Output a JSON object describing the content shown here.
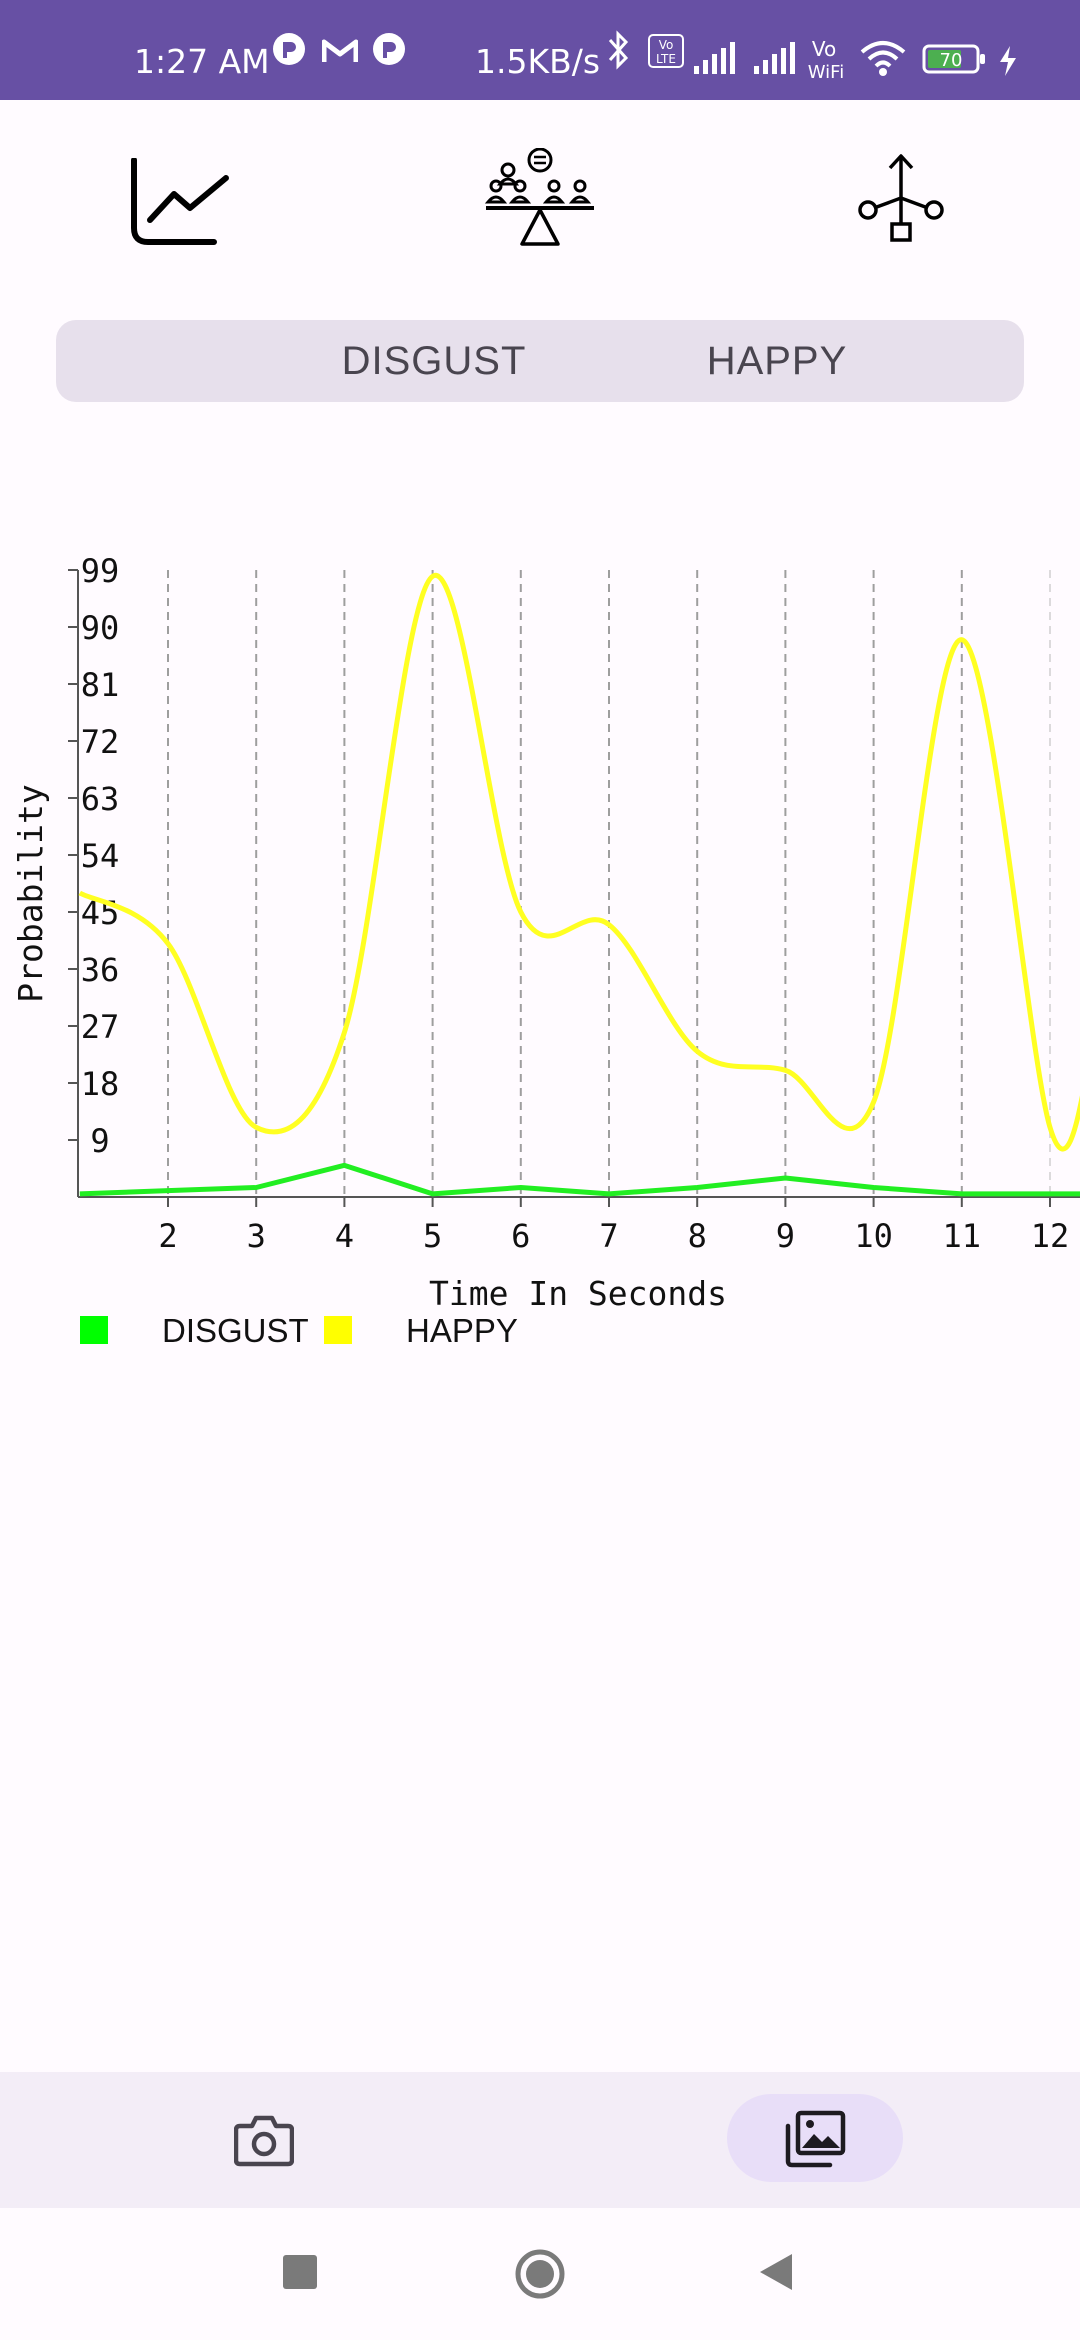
{
  "status_bar": {
    "time": "1:27 AM",
    "net_speed": "1.5KB/s",
    "volte_label_1": "Vo\nLTE",
    "vowifi_label": "Vo WiFi",
    "battery_level": "70",
    "background_color": "#6750a4",
    "icons": [
      "app-notification-icon",
      "gmail-icon",
      "app-notification-icon",
      "bluetooth-icon",
      "volte-icon",
      "signal-icon",
      "signal-icon",
      "vowifi-icon",
      "wifi-icon",
      "battery-icon",
      "charging-icon"
    ]
  },
  "toolbar": {
    "icons": [
      "line-chart-icon",
      "meeting-balance-icon",
      "flow-branch-icon"
    ]
  },
  "segments": {
    "items": [
      "DISGUST",
      "HAPPY"
    ]
  },
  "chart_data": {
    "type": "line",
    "title": "",
    "xlabel": "Time In Seconds",
    "ylabel": "Probability",
    "x": [
      1,
      2,
      3,
      4,
      5,
      6,
      7,
      8,
      9,
      10,
      11,
      12
    ],
    "x_ticks": [
      "2",
      "3",
      "4",
      "5",
      "6",
      "7",
      "8",
      "9",
      "10",
      "11",
      "12"
    ],
    "y_ticks": [
      "9",
      "18",
      "27",
      "36",
      "45",
      "54",
      "63",
      "72",
      "81",
      "90",
      "99"
    ],
    "xlim": [
      1,
      12.25
    ],
    "ylim": [
      0,
      99
    ],
    "grid": "vertical dashed",
    "legend_position": "bottom-left",
    "series": [
      {
        "name": "DISGUST",
        "color": "#22ee22",
        "curve": "linear",
        "values": [
          0.5,
          1,
          1.5,
          5,
          0.5,
          1.5,
          0.5,
          1.5,
          3,
          1.5,
          0.5,
          0.5
        ]
      },
      {
        "name": "HAPPY",
        "color": "#ffff22",
        "curve": "smooth",
        "values": [
          48,
          40,
          11,
          26,
          98,
          45,
          43,
          23,
          20,
          15,
          88,
          11
        ]
      }
    ],
    "legend": [
      {
        "label": "DISGUST",
        "color": "#00ff00"
      },
      {
        "label": "HAPPY",
        "color": "#ffff00"
      }
    ]
  },
  "bottom_nav": {
    "items": [
      {
        "icon": "camera-icon",
        "selected": false
      },
      {
        "icon": "gallery-icon",
        "selected": true
      }
    ]
  },
  "system_nav": {
    "icons": [
      "recents-square-icon",
      "home-circle-icon",
      "back-triangle-icon"
    ]
  }
}
